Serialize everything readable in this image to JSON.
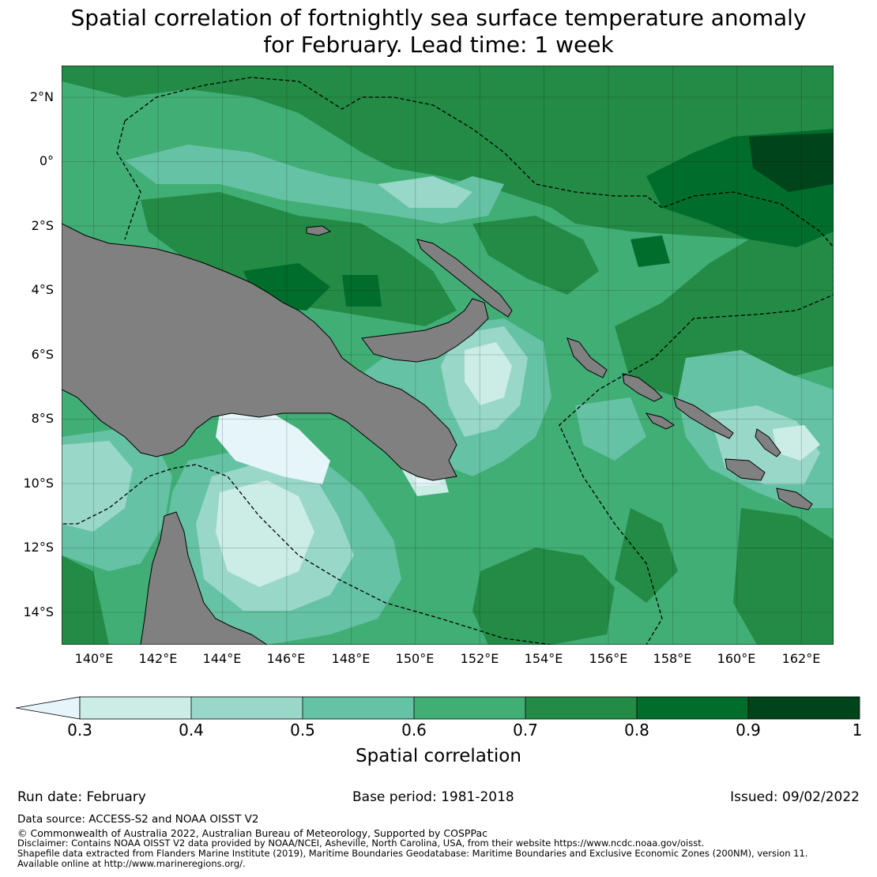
{
  "title": {
    "line1": "Spatial correlation of fortnightly sea surface temperature anomaly",
    "line2": "for February. Lead time: 1 week"
  },
  "map": {
    "lat_labels": [
      "2°N",
      "0°",
      "2°S",
      "4°S",
      "6°S",
      "8°S",
      "10°S",
      "12°S",
      "14°S"
    ],
    "lon_labels": [
      "140°E",
      "142°E",
      "144°E",
      "146°E",
      "148°E",
      "150°E",
      "152°E",
      "154°E",
      "156°E",
      "158°E",
      "160°E",
      "162°E"
    ],
    "lon_range": [
      139,
      163
    ],
    "lat_range": [
      -15,
      3
    ],
    "land_color": "#808080"
  },
  "colorbar": {
    "title": "Spatial correlation",
    "ticks": [
      "0.3",
      "0.4",
      "0.5",
      "0.6",
      "0.7",
      "0.8",
      "0.9",
      "1"
    ],
    "levels": [
      {
        "range": "<0.3",
        "color": "#e5f5f9"
      },
      {
        "range": "0.3-0.4",
        "color": "#ccece6"
      },
      {
        "range": "0.4-0.5",
        "color": "#99d8c9"
      },
      {
        "range": "0.5-0.6",
        "color": "#66c2a4"
      },
      {
        "range": "0.6-0.7",
        "color": "#41ae76"
      },
      {
        "range": "0.7-0.8",
        "color": "#238b45"
      },
      {
        "range": "0.8-0.9",
        "color": "#006d2c"
      },
      {
        "range": "0.9-1",
        "color": "#00441b"
      }
    ]
  },
  "footer": {
    "run_date": "Run date: February",
    "base_period": "Base period: 1981-2018",
    "issued": "Issued: 09/02/2022",
    "data_source": "Data source: ACCESS-S2 and NOAA OISST V2",
    "copyright": "© Commonwealth of Australia 2022, Australian Bureau of Meteorology, Supported by COSPPac",
    "disclaimer1": "Disclaimer: Contains NOAA OISST V2 data provided by NOAA/NCEI, Asheville, North Carolina, USA, from their website https://www.ncdc.noaa.gov/oisst.",
    "disclaimer2": "Shapefile data extracted from Flanders Marine Institute (2019), Maritime Boundaries Geodatabase: Maritime Boundaries and Exclusive Economic Zones (200NM), version 11.",
    "disclaimer3": "Available online at http://www.marineregions.org/."
  }
}
